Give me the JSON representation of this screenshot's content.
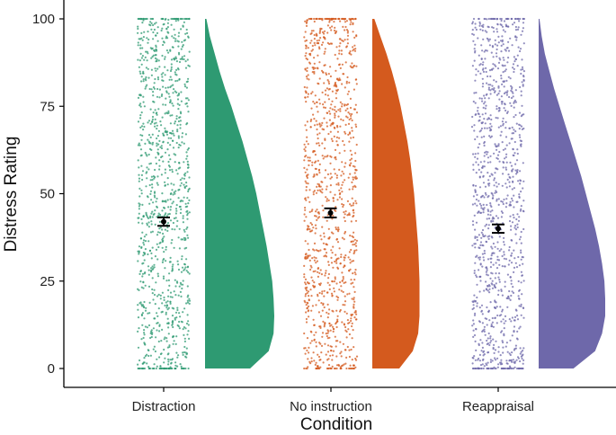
{
  "chart_data": {
    "type": "raincloud",
    "title": "",
    "xlabel": "Condition",
    "ylabel": "Distress Rating",
    "ylim": [
      0,
      100
    ],
    "yticks": [
      0,
      25,
      50,
      75,
      100
    ],
    "ytick_labels": [
      "0",
      "25",
      "50",
      "75",
      "100"
    ],
    "grid": false,
    "categories": [
      "Distraction",
      "No instruction",
      "Reappraisal"
    ],
    "colors": [
      "#2e9a72",
      "#d45a1e",
      "#6e68aa"
    ],
    "means": [
      42,
      44.5,
      40
    ],
    "error_half_width": [
      1.2,
      1.3,
      1.2
    ],
    "density": {
      "y": [
        0,
        5,
        10,
        15,
        20,
        25,
        30,
        35,
        40,
        45,
        50,
        55,
        60,
        65,
        70,
        75,
        80,
        85,
        90,
        95,
        100
      ],
      "series": [
        {
          "name": "Distraction",
          "values": [
            0.65,
            0.92,
            0.99,
            1.0,
            0.99,
            0.97,
            0.93,
            0.89,
            0.84,
            0.79,
            0.74,
            0.68,
            0.61,
            0.54,
            0.46,
            0.38,
            0.29,
            0.21,
            0.14,
            0.07,
            0.02
          ]
        },
        {
          "name": "No instruction",
          "values": [
            0.4,
            0.6,
            0.68,
            0.7,
            0.7,
            0.7,
            0.69,
            0.68,
            0.66,
            0.64,
            0.62,
            0.59,
            0.56,
            0.52,
            0.47,
            0.42,
            0.36,
            0.29,
            0.21,
            0.12,
            0.03
          ]
        },
        {
          "name": "Reappraisal",
          "values": [
            0.45,
            0.73,
            0.82,
            0.86,
            0.86,
            0.85,
            0.82,
            0.78,
            0.73,
            0.67,
            0.61,
            0.55,
            0.48,
            0.41,
            0.34,
            0.27,
            0.2,
            0.14,
            0.08,
            0.04,
            0.01
          ]
        }
      ]
    }
  }
}
